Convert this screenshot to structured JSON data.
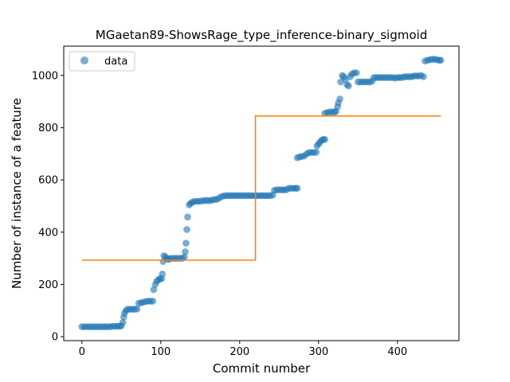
{
  "chart_data": {
    "type": "scatter",
    "title": "MGaetan89-ShowsRage_type_inference-binary_sigmoid",
    "xlabel": "Commit number",
    "ylabel": "Number of instance of a feature",
    "xlim": [
      -23,
      478
    ],
    "ylim": [
      -15,
      1112
    ],
    "xticks": [
      0,
      100,
      200,
      300,
      400
    ],
    "yticks": [
      0,
      200,
      400,
      600,
      800,
      1000
    ],
    "legend": {
      "position": "top-left",
      "entries": [
        "data"
      ]
    },
    "grid": false,
    "colors": {
      "data": "#1f77b4",
      "fit": "#ff7f0e"
    },
    "series": [
      {
        "name": "data",
        "marker": "circle",
        "points": [
          [
            0,
            38
          ],
          [
            3,
            38
          ],
          [
            6,
            38
          ],
          [
            9,
            38
          ],
          [
            12,
            38
          ],
          [
            15,
            38
          ],
          [
            18,
            38
          ],
          [
            21,
            38
          ],
          [
            24,
            38
          ],
          [
            27,
            38
          ],
          [
            30,
            38
          ],
          [
            33,
            38
          ],
          [
            36,
            38
          ],
          [
            39,
            40
          ],
          [
            42,
            40
          ],
          [
            45,
            40
          ],
          [
            48,
            40
          ],
          [
            50,
            42
          ],
          [
            52,
            55
          ],
          [
            53,
            75
          ],
          [
            54,
            90
          ],
          [
            56,
            100
          ],
          [
            58,
            105
          ],
          [
            61,
            105
          ],
          [
            64,
            105
          ],
          [
            67,
            105
          ],
          [
            70,
            106
          ],
          [
            72,
            128
          ],
          [
            75,
            130
          ],
          [
            78,
            132
          ],
          [
            81,
            135
          ],
          [
            84,
            136
          ],
          [
            87,
            136
          ],
          [
            90,
            136
          ],
          [
            91,
            180
          ],
          [
            93,
            200
          ],
          [
            95,
            212
          ],
          [
            97,
            218
          ],
          [
            99,
            222
          ],
          [
            101,
            222
          ],
          [
            102,
            240
          ],
          [
            103,
            288
          ],
          [
            104,
            310
          ],
          [
            106,
            305
          ],
          [
            108,
            298
          ],
          [
            110,
            296
          ],
          [
            112,
            300
          ],
          [
            115,
            300
          ],
          [
            118,
            300
          ],
          [
            121,
            300
          ],
          [
            124,
            300
          ],
          [
            127,
            300
          ],
          [
            130,
            305
          ],
          [
            131,
            325
          ],
          [
            132,
            358
          ],
          [
            133,
            410
          ],
          [
            134,
            458
          ],
          [
            136,
            505
          ],
          [
            138,
            510
          ],
          [
            140,
            515
          ],
          [
            143,
            518
          ],
          [
            146,
            518
          ],
          [
            149,
            518
          ],
          [
            152,
            520
          ],
          [
            155,
            520
          ],
          [
            158,
            522
          ],
          [
            161,
            520
          ],
          [
            164,
            522
          ],
          [
            167,
            525
          ],
          [
            170,
            525
          ],
          [
            173,
            528
          ],
          [
            176,
            535
          ],
          [
            179,
            538
          ],
          [
            182,
            540
          ],
          [
            185,
            540
          ],
          [
            188,
            540
          ],
          [
            191,
            540
          ],
          [
            194,
            540
          ],
          [
            197,
            540
          ],
          [
            200,
            540
          ],
          [
            203,
            540
          ],
          [
            206,
            540
          ],
          [
            209,
            540
          ],
          [
            212,
            540
          ],
          [
            215,
            540
          ],
          [
            218,
            540
          ],
          [
            221,
            540
          ],
          [
            224,
            540
          ],
          [
            227,
            540
          ],
          [
            230,
            540
          ],
          [
            233,
            540
          ],
          [
            236,
            540
          ],
          [
            239,
            540
          ],
          [
            242,
            542
          ],
          [
            244,
            560
          ],
          [
            247,
            562
          ],
          [
            250,
            562
          ],
          [
            253,
            562
          ],
          [
            256,
            562
          ],
          [
            259,
            562
          ],
          [
            262,
            568
          ],
          [
            265,
            568
          ],
          [
            268,
            568
          ],
          [
            271,
            568
          ],
          [
            273,
            568
          ],
          [
            273,
            685
          ],
          [
            276,
            688
          ],
          [
            279,
            690
          ],
          [
            282,
            692
          ],
          [
            285,
            700
          ],
          [
            288,
            705
          ],
          [
            291,
            705
          ],
          [
            294,
            705
          ],
          [
            297,
            706
          ],
          [
            298,
            730
          ],
          [
            300,
            738
          ],
          [
            302,
            745
          ],
          [
            304,
            752
          ],
          [
            306,
            755
          ],
          [
            308,
            755
          ],
          [
            308,
            855
          ],
          [
            311,
            858
          ],
          [
            314,
            860
          ],
          [
            317,
            860
          ],
          [
            320,
            860
          ],
          [
            322,
            862
          ],
          [
            324,
            880
          ],
          [
            325,
            895
          ],
          [
            327,
            910
          ],
          [
            328,
            975
          ],
          [
            330,
            1000
          ],
          [
            332,
            995
          ],
          [
            334,
            985
          ],
          [
            336,
            965
          ],
          [
            338,
            960
          ],
          [
            340,
            995
          ],
          [
            342,
            1005
          ],
          [
            345,
            1010
          ],
          [
            348,
            1010
          ],
          [
            350,
            975
          ],
          [
            353,
            975
          ],
          [
            356,
            975
          ],
          [
            359,
            975
          ],
          [
            362,
            975
          ],
          [
            365,
            975
          ],
          [
            368,
            978
          ],
          [
            370,
            992
          ],
          [
            373,
            992
          ],
          [
            376,
            992
          ],
          [
            379,
            992
          ],
          [
            382,
            992
          ],
          [
            385,
            992
          ],
          [
            388,
            992
          ],
          [
            391,
            992
          ],
          [
            394,
            992
          ],
          [
            397,
            990
          ],
          [
            400,
            992
          ],
          [
            403,
            992
          ],
          [
            406,
            992
          ],
          [
            409,
            995
          ],
          [
            412,
            995
          ],
          [
            415,
            995
          ],
          [
            418,
            995
          ],
          [
            421,
            998
          ],
          [
            424,
            998
          ],
          [
            427,
            998
          ],
          [
            430,
            1000
          ],
          [
            433,
            995
          ],
          [
            435,
            1055
          ],
          [
            438,
            1058
          ],
          [
            441,
            1060
          ],
          [
            444,
            1062
          ],
          [
            447,
            1062
          ],
          [
            450,
            1060
          ],
          [
            453,
            1058
          ],
          [
            455,
            1058
          ]
        ]
      },
      {
        "marker": "line",
        "step": true,
        "points": [
          [
            0,
            293
          ],
          [
            220,
            293
          ],
          [
            220,
            845
          ],
          [
            455,
            845
          ]
        ]
      }
    ]
  }
}
